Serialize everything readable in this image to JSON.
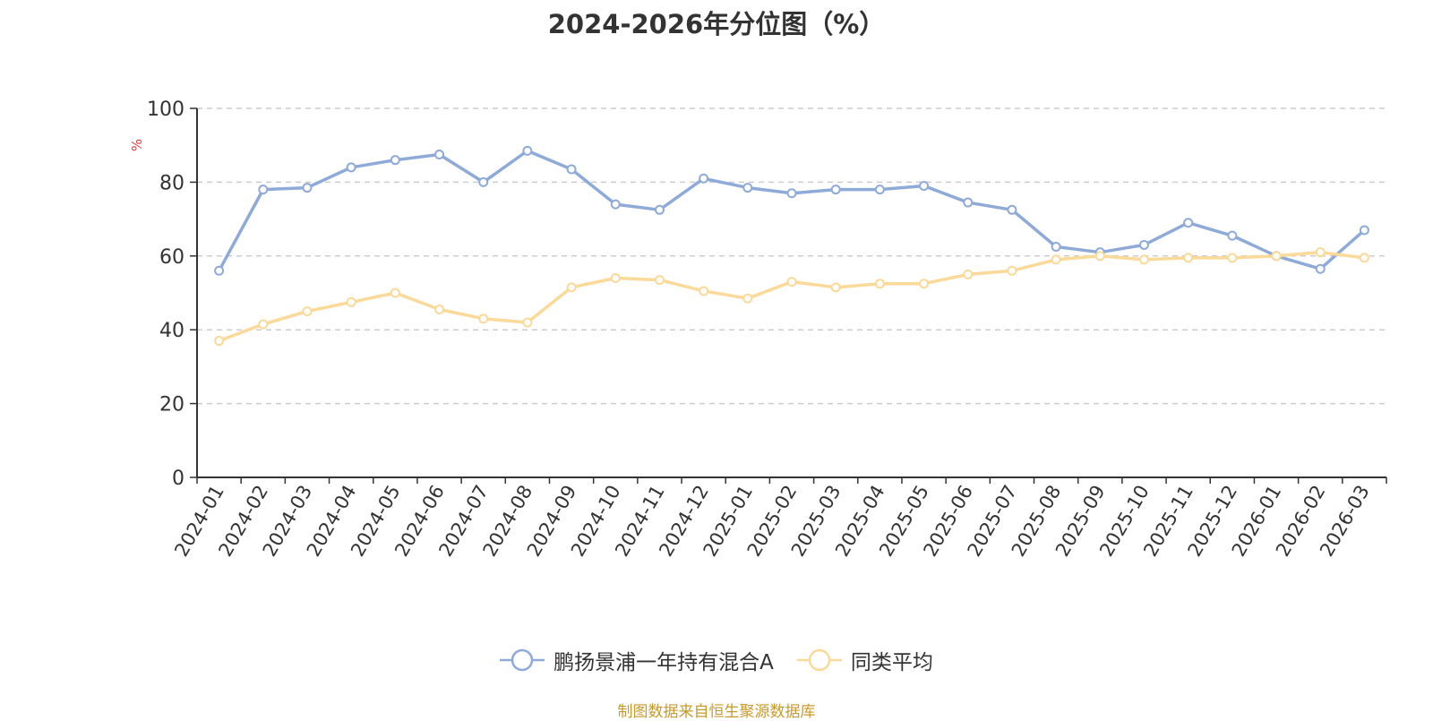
{
  "page": {
    "title": "2024-2026年分位图（%）",
    "source": "制图数据来自恒生聚源数据库"
  },
  "chart_data": {
    "type": "line",
    "title": "2024-2026年分位图（%）",
    "xlabel": "",
    "ylabel": "%",
    "ylim": [
      0,
      100
    ],
    "yticks": [
      0,
      20,
      40,
      60,
      80,
      100
    ],
    "grid": true,
    "legend_position": "bottom-center",
    "categories": [
      "2024-01",
      "2024-02",
      "2024-03",
      "2024-04",
      "2024-05",
      "2024-06",
      "2024-07",
      "2024-08",
      "2024-09",
      "2024-10",
      "2024-11",
      "2024-12",
      "2025-01",
      "2025-02",
      "2025-03",
      "2025-04",
      "2025-05",
      "2025-06",
      "2025-07",
      "2025-08",
      "2025-09",
      "2025-10",
      "2025-11",
      "2025-12",
      "2026-01",
      "2026-02",
      "2026-03"
    ],
    "series": [
      {
        "name": "鹏扬景浦一年持有混合A",
        "color": "#8eaad9",
        "values": [
          56,
          78,
          78.5,
          84,
          86,
          87.5,
          80,
          88.5,
          83.5,
          74,
          72.5,
          81,
          78.5,
          77,
          78,
          78,
          79,
          74.5,
          72.5,
          62.5,
          61,
          63,
          69,
          65.5,
          60,
          56.5,
          67
        ]
      },
      {
        "name": "同类平均",
        "color": "#fbd998",
        "values": [
          37,
          41.5,
          45,
          47.5,
          50,
          45.5,
          43,
          42,
          51.5,
          54,
          53.5,
          50.5,
          48.5,
          53,
          51.5,
          52.5,
          52.5,
          55,
          56,
          59,
          60,
          59,
          59.5,
          59.5,
          60,
          61,
          59.5
        ]
      }
    ]
  }
}
